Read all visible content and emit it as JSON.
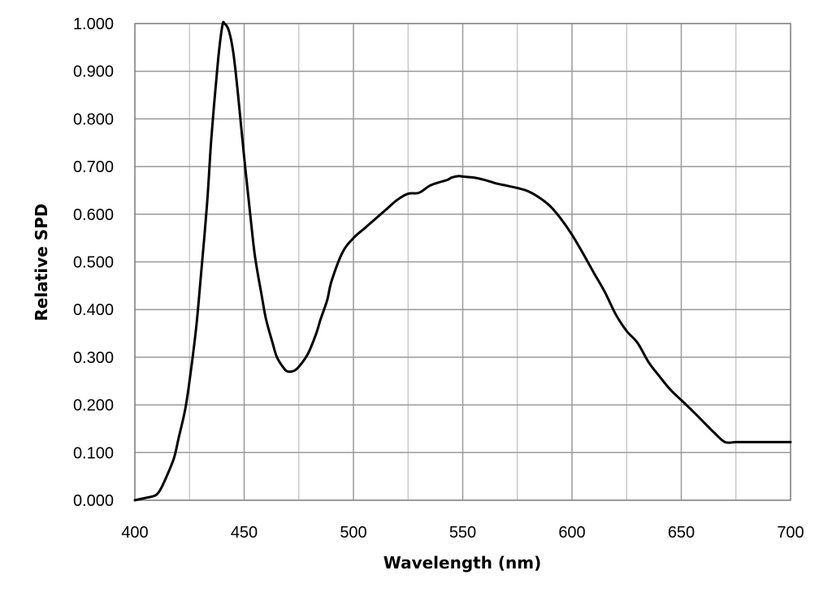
{
  "chart_data": {
    "type": "line",
    "xlabel": "Wavelength (nm)",
    "ylabel": "Relative SPD",
    "xlim": [
      400,
      700
    ],
    "ylim": [
      0,
      1
    ],
    "x_ticks": [
      400,
      450,
      500,
      550,
      600,
      650,
      700
    ],
    "x_tick_labels": [
      "400",
      "450",
      "500",
      "550",
      "600",
      "650",
      "700"
    ],
    "x_minor_gridlines": [
      425,
      475,
      525,
      575,
      625,
      675
    ],
    "y_ticks": [
      0,
      0.1,
      0.2,
      0.3,
      0.4,
      0.5,
      0.6,
      0.7,
      0.8,
      0.9,
      1.0
    ],
    "y_tick_labels": [
      "0.000",
      "0.100",
      "0.200",
      "0.300",
      "0.400",
      "0.500",
      "0.600",
      "0.700",
      "0.800",
      "0.900",
      "1.000"
    ],
    "grid": true,
    "legend": "none",
    "series": [
      {
        "color": "#000000",
        "x": [
          400,
          405,
          408,
          410,
          412,
          415,
          418,
          420,
          423,
          425,
          428,
          430,
          433,
          435,
          438,
          440,
          441,
          443,
          445,
          447,
          450,
          453,
          455,
          458,
          460,
          463,
          465,
          468,
          470,
          473,
          475,
          478,
          480,
          483,
          485,
          488,
          490,
          495,
          500,
          505,
          510,
          515,
          520,
          525,
          530,
          535,
          540,
          543,
          545,
          548,
          550,
          555,
          560,
          565,
          570,
          575,
          580,
          585,
          590,
          595,
          600,
          605,
          610,
          615,
          620,
          625,
          630,
          635,
          640,
          645,
          650,
          655,
          660,
          665,
          670,
          675,
          680,
          685,
          690,
          695,
          700
        ],
        "values": [
          0.0,
          0.005,
          0.008,
          0.012,
          0.025,
          0.055,
          0.09,
          0.13,
          0.19,
          0.25,
          0.36,
          0.46,
          0.62,
          0.76,
          0.92,
          0.995,
          1.0,
          0.985,
          0.94,
          0.86,
          0.72,
          0.59,
          0.51,
          0.43,
          0.38,
          0.33,
          0.3,
          0.278,
          0.27,
          0.272,
          0.28,
          0.298,
          0.315,
          0.35,
          0.38,
          0.42,
          0.46,
          0.52,
          0.55,
          0.57,
          0.59,
          0.61,
          0.63,
          0.643,
          0.645,
          0.66,
          0.668,
          0.672,
          0.677,
          0.68,
          0.679,
          0.677,
          0.672,
          0.665,
          0.66,
          0.655,
          0.648,
          0.635,
          0.617,
          0.59,
          0.557,
          0.518,
          0.477,
          0.437,
          0.39,
          0.355,
          0.33,
          0.29,
          0.26,
          0.232,
          0.21,
          0.188,
          0.165,
          0.142,
          0.122,
          0.122,
          0.122,
          0.122,
          0.122,
          0.122,
          0.122
        ]
      }
    ]
  }
}
